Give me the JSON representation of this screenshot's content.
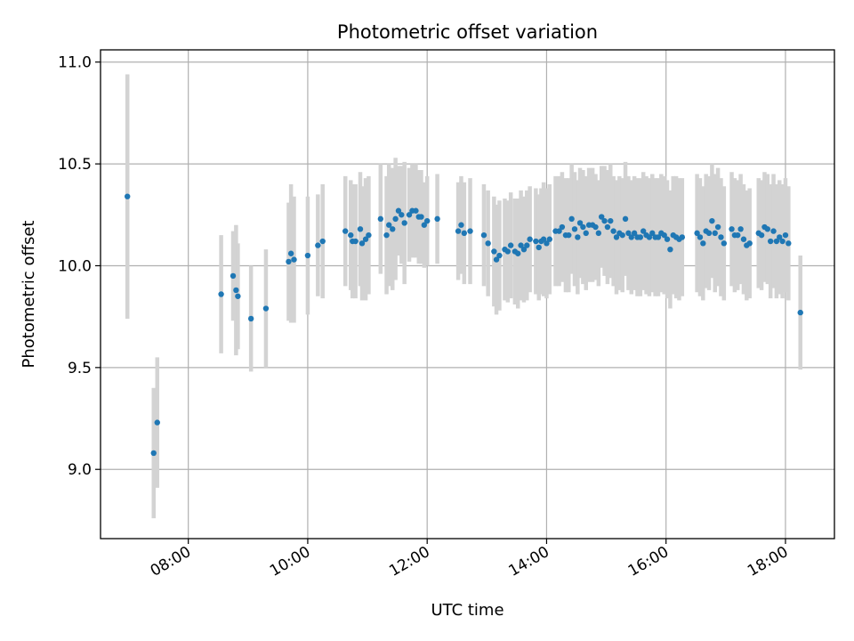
{
  "chart_data": {
    "type": "scatter",
    "title": "Photometric offset variation",
    "xlabel": "UTC time",
    "ylabel": "Photometric offset",
    "x_unit": "hours UTC",
    "xlim": [
      6.53,
      18.82
    ],
    "ylim": [
      8.66,
      11.06
    ],
    "xticks": [
      {
        "value": 8,
        "label": "08:00"
      },
      {
        "value": 10,
        "label": "10:00"
      },
      {
        "value": 12,
        "label": "12:00"
      },
      {
        "value": 14,
        "label": "14:00"
      },
      {
        "value": 16,
        "label": "16:00"
      },
      {
        "value": 18,
        "label": "18:00"
      }
    ],
    "yticks": [
      {
        "value": 9.0,
        "label": "9.0"
      },
      {
        "value": 9.5,
        "label": "9.5"
      },
      {
        "value": 10.0,
        "label": "10.0"
      },
      {
        "value": 10.5,
        "label": "10.5"
      },
      {
        "value": 11.0,
        "label": "11.0"
      }
    ],
    "grid": true,
    "point_color": "#1f77b4",
    "errorbar_color": "#d3d3d3",
    "series": [
      {
        "x": [
          6.98,
          7.42,
          7.48,
          8.55,
          8.75,
          8.8,
          8.83,
          9.05,
          9.3,
          9.68,
          9.72,
          9.77,
          10.0,
          10.17,
          10.25,
          10.63,
          10.72,
          10.75,
          10.8,
          10.88,
          10.91,
          10.97,
          11.02,
          11.22,
          11.32,
          11.36,
          11.42,
          11.47,
          11.52,
          11.57,
          11.62,
          11.7,
          11.75,
          11.81,
          11.86,
          11.9,
          11.95,
          12.0,
          12.17,
          12.52,
          12.57,
          12.62,
          12.72,
          12.95,
          13.02,
          13.12,
          13.16,
          13.21,
          13.3,
          13.35,
          13.4,
          13.47,
          13.52,
          13.57,
          13.62,
          13.67,
          13.72,
          13.82,
          13.87,
          13.91,
          13.95,
          14.0,
          14.05,
          14.15,
          14.21,
          14.26,
          14.32,
          14.37,
          14.42,
          14.47,
          14.52,
          14.56,
          14.61,
          14.66,
          14.71,
          14.77,
          14.82,
          14.87,
          14.92,
          14.97,
          15.02,
          15.07,
          15.12,
          15.17,
          15.22,
          15.27,
          15.32,
          15.37,
          15.42,
          15.47,
          15.52,
          15.57,
          15.62,
          15.67,
          15.72,
          15.77,
          15.82,
          15.87,
          15.92,
          15.97,
          16.02,
          16.07,
          16.12,
          16.17,
          16.22,
          16.27,
          16.52,
          16.57,
          16.62,
          16.67,
          16.72,
          16.77,
          16.82,
          16.87,
          16.92,
          16.97,
          17.1,
          17.15,
          17.2,
          17.25,
          17.3,
          17.35,
          17.4,
          17.55,
          17.6,
          17.65,
          17.7,
          17.75,
          17.8,
          17.85,
          17.9,
          17.95,
          18.0,
          18.05,
          18.25
        ],
        "y": [
          10.34,
          9.08,
          9.23,
          9.86,
          9.95,
          9.88,
          9.85,
          9.74,
          9.79,
          10.02,
          10.06,
          10.03,
          10.05,
          10.1,
          10.12,
          10.17,
          10.15,
          10.12,
          10.12,
          10.18,
          10.11,
          10.13,
          10.15,
          10.23,
          10.15,
          10.2,
          10.18,
          10.23,
          10.27,
          10.25,
          10.21,
          10.25,
          10.27,
          10.27,
          10.24,
          10.24,
          10.2,
          10.22,
          10.23,
          10.17,
          10.2,
          10.16,
          10.17,
          10.15,
          10.11,
          10.07,
          10.03,
          10.05,
          10.08,
          10.07,
          10.1,
          10.07,
          10.06,
          10.1,
          10.08,
          10.1,
          10.13,
          10.12,
          10.09,
          10.12,
          10.13,
          10.11,
          10.13,
          10.17,
          10.17,
          10.19,
          10.15,
          10.15,
          10.23,
          10.18,
          10.14,
          10.21,
          10.19,
          10.16,
          10.2,
          10.2,
          10.19,
          10.16,
          10.24,
          10.22,
          10.19,
          10.22,
          10.17,
          10.14,
          10.16,
          10.15,
          10.23,
          10.16,
          10.14,
          10.16,
          10.14,
          10.14,
          10.17,
          10.15,
          10.14,
          10.16,
          10.14,
          10.14,
          10.16,
          10.15,
          10.13,
          10.08,
          10.15,
          10.14,
          10.13,
          10.14,
          10.16,
          10.14,
          10.11,
          10.17,
          10.16,
          10.22,
          10.16,
          10.19,
          10.14,
          10.11,
          10.18,
          10.15,
          10.15,
          10.18,
          10.13,
          10.1,
          10.11,
          10.16,
          10.15,
          10.19,
          10.18,
          10.12,
          10.17,
          10.12,
          10.14,
          10.12,
          10.15,
          10.11,
          9.77
        ],
        "yerr": [
          0.6,
          0.32,
          0.32,
          0.29,
          0.22,
          0.32,
          0.26,
          0.26,
          0.29,
          0.29,
          0.34,
          0.31,
          0.29,
          0.25,
          0.28,
          0.27,
          0.27,
          0.28,
          0.28,
          0.28,
          0.28,
          0.3,
          0.29,
          0.27,
          0.29,
          0.3,
          0.3,
          0.3,
          0.22,
          0.24,
          0.3,
          0.23,
          0.23,
          0.23,
          0.23,
          0.23,
          0.21,
          0.22,
          0.22,
          0.24,
          0.24,
          0.25,
          0.26,
          0.25,
          0.26,
          0.27,
          0.27,
          0.27,
          0.25,
          0.25,
          0.26,
          0.26,
          0.27,
          0.27,
          0.26,
          0.27,
          0.26,
          0.26,
          0.26,
          0.26,
          0.28,
          0.27,
          0.27,
          0.27,
          0.27,
          0.27,
          0.28,
          0.28,
          0.27,
          0.28,
          0.28,
          0.27,
          0.28,
          0.28,
          0.28,
          0.28,
          0.26,
          0.26,
          0.25,
          0.27,
          0.28,
          0.28,
          0.27,
          0.28,
          0.28,
          0.28,
          0.28,
          0.28,
          0.28,
          0.28,
          0.29,
          0.29,
          0.29,
          0.29,
          0.29,
          0.29,
          0.29,
          0.29,
          0.29,
          0.29,
          0.29,
          0.29,
          0.29,
          0.3,
          0.3,
          0.29,
          0.29,
          0.29,
          0.28,
          0.28,
          0.28,
          0.28,
          0.29,
          0.29,
          0.29,
          0.28,
          0.28,
          0.28,
          0.27,
          0.27,
          0.27,
          0.27,
          0.27,
          0.27,
          0.27,
          0.27,
          0.27,
          0.28,
          0.28,
          0.28,
          0.28,
          0.28,
          0.28,
          0.28,
          0.28
        ]
      }
    ]
  }
}
